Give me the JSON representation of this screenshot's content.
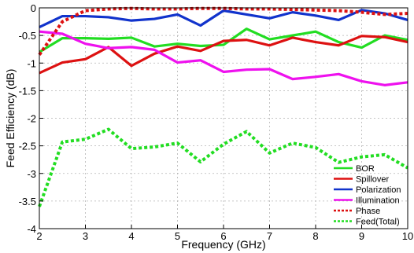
{
  "chart_data": {
    "type": "line",
    "title": "",
    "xlabel": "Frequency (GHz)",
    "ylabel": "Feed Efficiency (dB)",
    "xlim": [
      2,
      10
    ],
    "ylim": [
      -4,
      0
    ],
    "xticks": [
      "2",
      "3",
      "4",
      "5",
      "6",
      "7",
      "8",
      "9",
      "10"
    ],
    "yticks": [
      "0",
      "-0.5",
      "-1",
      "-1.5",
      "-2",
      "-2.5",
      "-3",
      "-3.5",
      "-4"
    ],
    "grid": true,
    "legend_position": "bottom-right",
    "x": [
      2,
      2.5,
      3,
      3.5,
      4,
      4.5,
      5,
      5.5,
      6,
      6.5,
      7,
      7.5,
      8,
      8.5,
      9,
      9.5,
      10
    ],
    "series": [
      {
        "name": "BOR",
        "color": "#22dd22",
        "style": "solid",
        "values": [
          -0.8,
          -0.55,
          -0.55,
          -0.56,
          -0.54,
          -0.7,
          -0.65,
          -0.69,
          -0.67,
          -0.38,
          -0.57,
          -0.5,
          -0.43,
          -0.62,
          -0.72,
          -0.5,
          -0.58
        ]
      },
      {
        "name": "Spillover",
        "color": "#dd1111",
        "style": "solid",
        "values": [
          -1.18,
          -0.99,
          -0.93,
          -0.71,
          -1.05,
          -0.83,
          -0.7,
          -0.78,
          -0.6,
          -0.58,
          -0.68,
          -0.54,
          -0.62,
          -0.68,
          -0.51,
          -0.53,
          -0.62
        ]
      },
      {
        "name": "Polarization",
        "color": "#1133cc",
        "style": "solid",
        "values": [
          -0.35,
          -0.15,
          -0.15,
          -0.17,
          -0.23,
          -0.2,
          -0.12,
          -0.32,
          -0.05,
          -0.12,
          -0.19,
          -0.08,
          -0.14,
          -0.22,
          -0.04,
          -0.1,
          -0.22
        ]
      },
      {
        "name": "Illumination",
        "color": "#ee11ee",
        "style": "solid",
        "values": [
          -0.43,
          -0.47,
          -0.65,
          -0.73,
          -0.71,
          -0.76,
          -0.99,
          -0.95,
          -1.16,
          -1.12,
          -1.11,
          -1.29,
          -1.25,
          -1.2,
          -1.33,
          -1.4,
          -1.35
        ]
      },
      {
        "name": "Phase",
        "color": "#dd1111",
        "style": "dashed",
        "values": [
          -0.85,
          -0.25,
          -0.05,
          -0.02,
          -0.01,
          -0.02,
          -0.02,
          -0.01,
          -0.01,
          -0.02,
          -0.02,
          -0.03,
          -0.04,
          -0.05,
          -0.08,
          -0.12,
          -0.1
        ]
      },
      {
        "name": "Feed(Total)",
        "color": "#22dd22",
        "style": "dashed",
        "values": [
          -3.6,
          -2.43,
          -2.38,
          -2.2,
          -2.55,
          -2.52,
          -2.45,
          -2.79,
          -2.47,
          -2.24,
          -2.63,
          -2.45,
          -2.53,
          -2.8,
          -2.7,
          -2.66,
          -2.9
        ]
      }
    ]
  }
}
